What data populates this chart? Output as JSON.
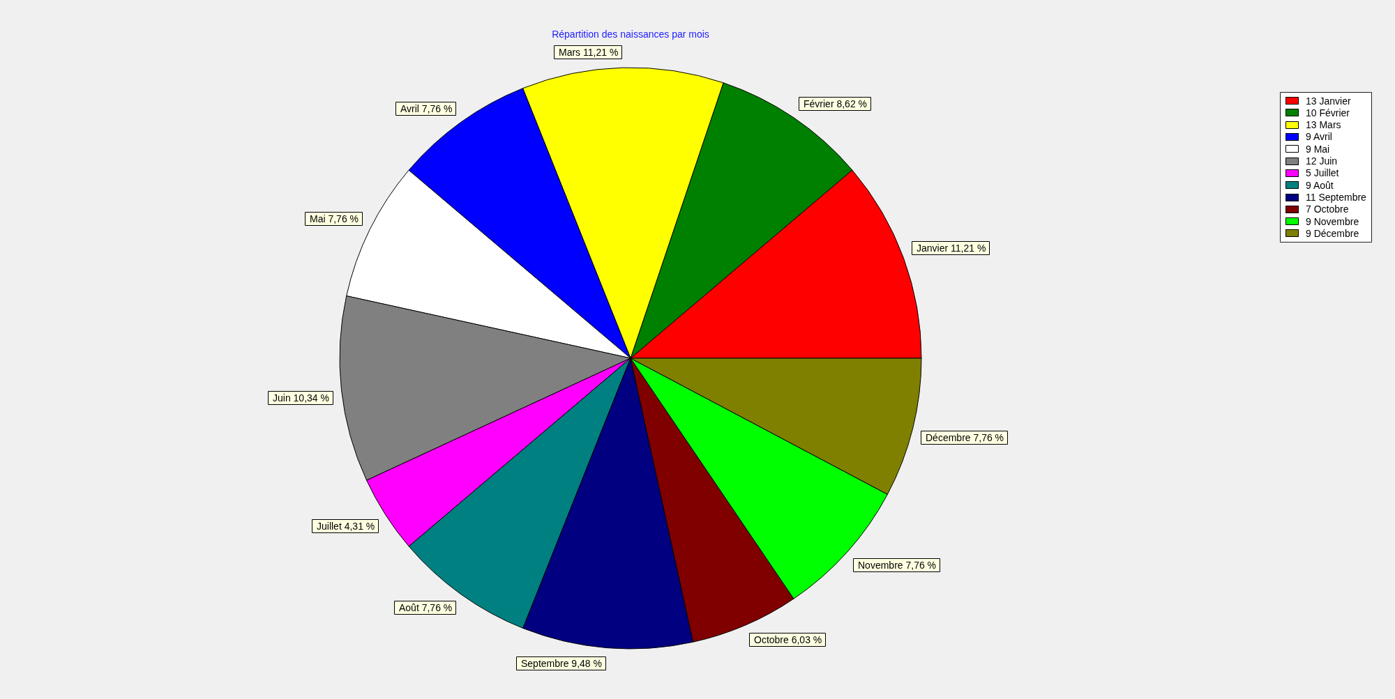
{
  "chart_data": {
    "type": "pie",
    "title": "Répartition des naissances par mois",
    "categories": [
      "13 Janvier",
      "10 Février",
      "13 Mars",
      "9 Avril",
      "9 Mai",
      "12 Juin",
      "5 Juillet",
      "9 Août",
      "11 Septembre",
      "7 Octobre",
      "9 Novembre",
      "9 Décembre"
    ],
    "values": [
      11.21,
      8.62,
      11.21,
      7.76,
      7.76,
      10.34,
      4.31,
      7.76,
      9.48,
      6.03,
      7.76,
      7.76
    ],
    "colors": [
      "#ff0000",
      "#008000",
      "#ffff00",
      "#0000ff",
      "#ffffff",
      "#808080",
      "#ff00ff",
      "#008080",
      "#000080",
      "#800000",
      "#00ff00",
      "#808000"
    ],
    "value_labels": [
      "Janvier 11,21 %",
      "Février 8,62 %",
      "Mars 11,21 %",
      "Avril 7,76 %",
      "Mai 7,76 %",
      "Juin 10,34 %",
      "Juillet 4,31 %",
      "Août 7,76 %",
      "Septembre 9,48 %",
      "Octobre 6,03 %",
      "Novembre 7,76 %",
      "Décembre 7,76 %"
    ],
    "legend": "top right"
  }
}
